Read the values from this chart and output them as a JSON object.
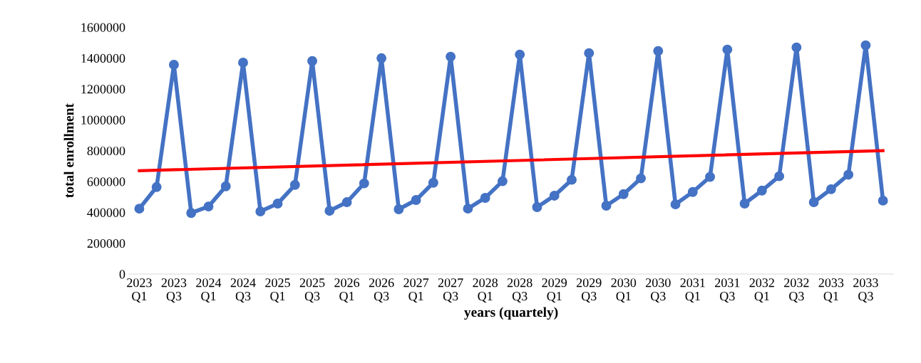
{
  "chart_data": {
    "type": "line",
    "xlabel": "years (quartely)",
    "ylabel": "total enrollment",
    "categories": [
      "2023\nQ1",
      null,
      "2023\nQ3",
      null,
      "2024\nQ1",
      null,
      "2024\nQ3",
      null,
      "2025\nQ1",
      null,
      "2025\nQ3",
      null,
      "2026\nQ1",
      null,
      "2026\nQ3",
      null,
      "2027\nQ1",
      null,
      "2027\nQ3",
      null,
      "2028\nQ1",
      null,
      "2028\nQ3",
      null,
      "2029\nQ1",
      null,
      "2029\nQ3",
      null,
      "2030\nQ1",
      null,
      "2030\nQ3",
      null,
      "2031\nQ1",
      null,
      "2031\nQ3",
      null,
      "2032\nQ1",
      null,
      "2032\nQ3",
      null,
      "2033\nQ1",
      null,
      "2033\nQ3",
      null
    ],
    "ylim": [
      0,
      1600000
    ],
    "yticks": [
      0,
      200000,
      400000,
      600000,
      800000,
      1000000,
      1200000,
      1400000,
      1600000
    ],
    "grid": false,
    "legend": false,
    "marker": "circle",
    "line_style": "solid",
    "series": [
      {
        "color": "#4472c4",
        "values": [
          424000,
          564000,
          1357000,
          396000,
          438000,
          569000,
          1371000,
          406000,
          457000,
          578000,
          1381000,
          410000,
          466000,
          588000,
          1399000,
          420000,
          480000,
          592000,
          1409000,
          424000,
          494000,
          602000,
          1423000,
          434000,
          508000,
          611000,
          1432000,
          443000,
          518000,
          620000,
          1446000,
          452000,
          532000,
          630000,
          1455000,
          457000,
          541000,
          634000,
          1469000,
          466000,
          550000,
          644000,
          1483000,
          476000
        ]
      },
      {
        "type": "line",
        "marker": "none",
        "color": "#ff0000",
        "values": [
          670000,
          null,
          null,
          null,
          null,
          null,
          null,
          null,
          null,
          null,
          null,
          null,
          null,
          null,
          null,
          null,
          null,
          null,
          null,
          null,
          null,
          null,
          null,
          null,
          null,
          null,
          null,
          null,
          null,
          null,
          null,
          null,
          null,
          null,
          null,
          null,
          null,
          null,
          null,
          null,
          null,
          null,
          null,
          800000
        ]
      }
    ]
  }
}
